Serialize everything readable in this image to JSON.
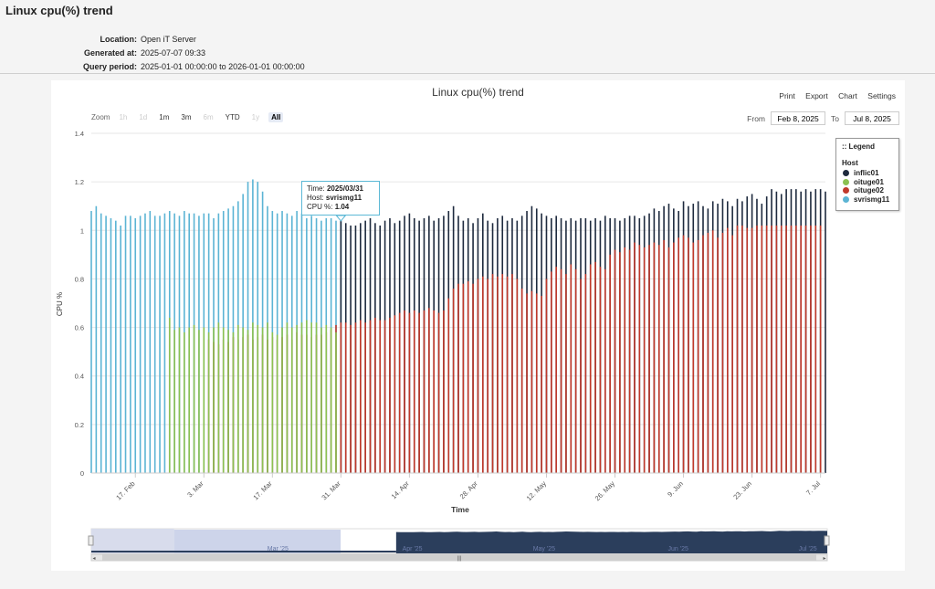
{
  "report": {
    "title": "Linux cpu(%) trend",
    "location_label": "Location:",
    "location": "Open iT Server",
    "generated_label": "Generated at:",
    "generated": "2025-07-07 09:33",
    "period_label": "Query period:",
    "period": "2025-01-01 00:00:00 to 2026-01-01 00:00:00"
  },
  "toolbar": {
    "zoom_label": "Zoom",
    "zoom_buttons": [
      "1h",
      "1d",
      "1m",
      "3m",
      "6m",
      "YTD",
      "1y",
      "All"
    ],
    "from_label": "From",
    "from_value": "Feb 8, 2025",
    "to_label": "To",
    "to_value": "Jul 8, 2025",
    "menu": [
      "Print",
      "Export",
      "Chart",
      "Settings"
    ]
  },
  "legend": {
    "title": ":: Legend",
    "subtitle": "Host"
  },
  "tooltip": {
    "time_label": "Time:",
    "time": "2025/03/31",
    "host_label": "Host:",
    "host": "svrismg11",
    "value_label": "CPU %:",
    "value": "1.04"
  },
  "chart_data": {
    "type": "bar",
    "title": "Linux cpu(%) trend",
    "xlabel": "Time",
    "ylabel": "CPU %",
    "ylim": [
      0,
      1.4
    ],
    "yticks": [
      0,
      0.2,
      0.4,
      0.6,
      0.8,
      1,
      1.2,
      1.4
    ],
    "xlim": [
      "2025-02-08",
      "2025-07-08"
    ],
    "xticks": [
      {
        "date": "2025-02-17",
        "label": "17. Feb"
      },
      {
        "date": "2025-03-03",
        "label": "3. Mar"
      },
      {
        "date": "2025-03-17",
        "label": "17. Mar"
      },
      {
        "date": "2025-03-31",
        "label": "31. Mar"
      },
      {
        "date": "2025-04-14",
        "label": "14. Apr"
      },
      {
        "date": "2025-04-28",
        "label": "28. Apr"
      },
      {
        "date": "2025-05-12",
        "label": "12. May"
      },
      {
        "date": "2025-05-26",
        "label": "26. May"
      },
      {
        "date": "2025-06-09",
        "label": "9. Jun"
      },
      {
        "date": "2025-06-23",
        "label": "23. Jun"
      },
      {
        "date": "2025-07-07",
        "label": "7. Jul"
      }
    ],
    "navigator_labels": [
      "Mar '25",
      "Apr '25",
      "May '25",
      "Jun '25",
      "Jul '25"
    ],
    "grid": true,
    "legend_position": "right",
    "series": [
      {
        "name": "inflic01",
        "color": "#1e2a3e",
        "start": "2025-03-31",
        "end": "2025-07-08",
        "values": [
          1.04,
          1.03,
          1.02,
          1.02,
          1.03,
          1.04,
          1.05,
          1.03,
          1.02,
          1.04,
          1.05,
          1.03,
          1.04,
          1.06,
          1.07,
          1.05,
          1.04,
          1.05,
          1.06,
          1.04,
          1.05,
          1.06,
          1.08,
          1.1,
          1.06,
          1.04,
          1.05,
          1.03,
          1.05,
          1.07,
          1.04,
          1.03,
          1.05,
          1.06,
          1.04,
          1.05,
          1.04,
          1.06,
          1.08,
          1.1,
          1.09,
          1.07,
          1.06,
          1.05,
          1.06,
          1.05,
          1.04,
          1.05,
          1.04,
          1.05,
          1.05,
          1.04,
          1.05,
          1.04,
          1.06,
          1.05,
          1.05,
          1.04,
          1.05,
          1.06,
          1.06,
          1.05,
          1.06,
          1.07,
          1.09,
          1.08,
          1.1,
          1.11,
          1.09,
          1.08,
          1.12,
          1.1,
          1.11,
          1.12,
          1.1,
          1.09,
          1.12,
          1.11,
          1.13,
          1.12,
          1.1,
          1.13,
          1.12,
          1.14,
          1.15,
          1.13,
          1.11,
          1.14,
          1.17,
          1.16,
          1.15,
          1.17,
          1.17,
          1.17,
          1.16,
          1.17,
          1.16,
          1.17,
          1.17,
          1.16
        ]
      },
      {
        "name": "oituge01",
        "color": "#8cc152",
        "start": "2025-02-24",
        "end": "2025-03-30",
        "values": [
          0.64,
          0.59,
          0.6,
          0.58,
          0.6,
          0.61,
          0.59,
          0.6,
          0.58,
          0.6,
          0.62,
          0.6,
          0.59,
          0.58,
          0.61,
          0.6,
          0.59,
          0.62,
          0.61,
          0.6,
          0.62,
          0.58,
          0.57,
          0.6,
          0.62,
          0.6,
          0.61,
          0.62,
          0.63,
          0.62,
          0.62,
          0.6,
          0.61,
          0.6,
          0.58
        ]
      },
      {
        "name": "oituge02",
        "color": "#c0392b",
        "start": "2025-03-04",
        "end": "2025-07-08",
        "values": [
          0.55,
          0.54,
          0.53,
          0.55,
          0.54,
          0.56,
          0.55,
          0.56,
          0.57,
          0.55,
          0.56,
          0.57,
          0.55,
          0.56,
          0.55,
          0.56,
          0.57,
          0.55,
          0.58,
          0.57,
          0.57,
          0.56,
          0.57,
          0.57,
          0.58,
          0.59,
          0.61,
          0.62,
          0.62,
          0.61,
          0.62,
          0.63,
          0.62,
          0.63,
          0.64,
          0.63,
          0.63,
          0.64,
          0.65,
          0.66,
          0.67,
          0.66,
          0.67,
          0.66,
          0.67,
          0.68,
          0.67,
          0.66,
          0.67,
          0.72,
          0.76,
          0.78,
          0.78,
          0.79,
          0.78,
          0.8,
          0.81,
          0.8,
          0.82,
          0.81,
          0.82,
          0.81,
          0.82,
          0.8,
          0.76,
          0.74,
          0.75,
          0.74,
          0.73,
          0.8,
          0.83,
          0.85,
          0.84,
          0.82,
          0.86,
          0.84,
          0.8,
          0.82,
          0.86,
          0.87,
          0.85,
          0.84,
          0.9,
          0.92,
          0.91,
          0.93,
          0.92,
          0.95,
          0.94,
          0.93,
          0.94,
          0.95,
          0.94,
          0.96,
          0.93,
          0.95,
          0.97,
          0.98,
          0.97,
          0.95,
          0.96,
          0.98,
          0.99,
          1.0,
          0.97,
          0.99,
          1.01,
          0.98,
          1.02,
          1.02,
          1.01,
          1.01,
          1.02,
          1.02,
          1.02,
          1.02,
          1.02,
          1.02,
          1.02,
          1.02,
          1.02,
          1.02,
          1.02,
          1.02,
          1.02,
          1.02
        ]
      },
      {
        "name": "svrismg11",
        "color": "#5bb4d4",
        "start": "2025-02-08",
        "end": "2025-03-31",
        "values": [
          1.08,
          1.1,
          1.07,
          1.06,
          1.05,
          1.04,
          1.02,
          1.06,
          1.06,
          1.05,
          1.06,
          1.07,
          1.08,
          1.06,
          1.06,
          1.07,
          1.08,
          1.07,
          1.06,
          1.08,
          1.07,
          1.07,
          1.06,
          1.07,
          1.07,
          1.05,
          1.07,
          1.08,
          1.09,
          1.1,
          1.12,
          1.15,
          1.2,
          1.21,
          1.2,
          1.16,
          1.1,
          1.08,
          1.07,
          1.08,
          1.07,
          1.06,
          1.08,
          1.07,
          1.05,
          1.06,
          1.05,
          1.04,
          1.05,
          1.05,
          1.04,
          1.04
        ]
      }
    ]
  }
}
